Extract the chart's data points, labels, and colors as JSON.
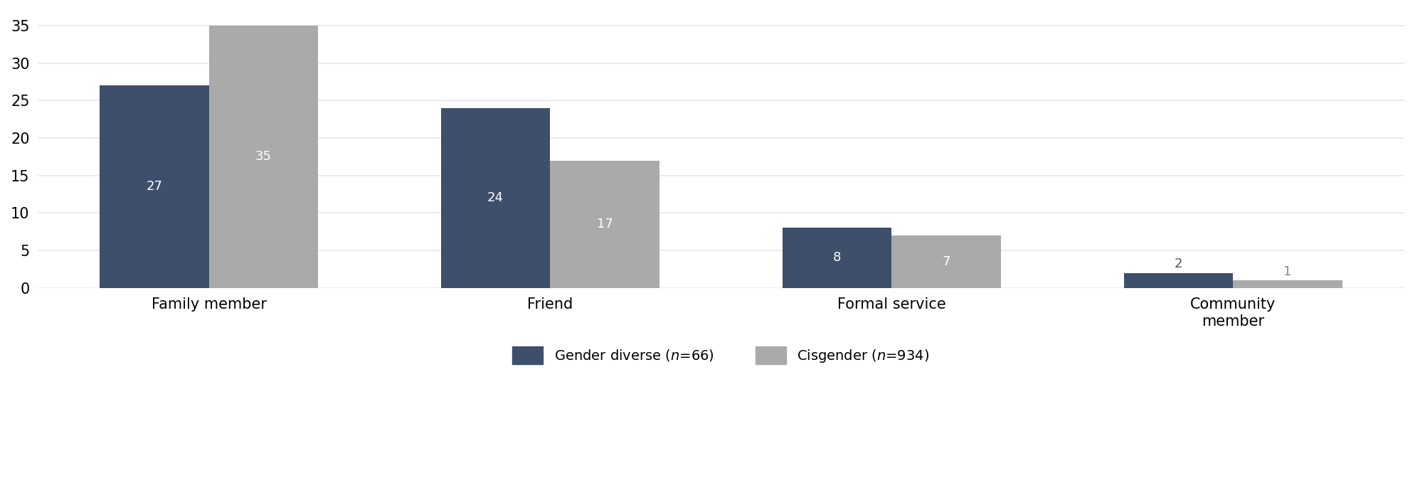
{
  "categories": [
    "Family member",
    "Friend",
    "Formal service",
    "Community\nmember"
  ],
  "gender_diverse": [
    27,
    24,
    8,
    2
  ],
  "cisgender": [
    35,
    17,
    7,
    1
  ],
  "bar_color_diverse": "#3d4f6b",
  "bar_color_cisgender": "#aaaaaa",
  "ylim": [
    0,
    37
  ],
  "yticks": [
    0,
    5,
    10,
    15,
    20,
    25,
    30,
    35
  ],
  "bar_width": 0.32,
  "tick_fontsize": 15,
  "legend_fontsize": 14,
  "value_fontsize_inside": 13,
  "value_fontsize_outside": 13,
  "background_color": "#ffffff",
  "grid_color": "#e8e8e8",
  "inside_label_threshold": 3,
  "value_label_color_inside": "#ffffff",
  "value_label_color_outside_gd": "#555555",
  "value_label_color_outside_cg": "#888888"
}
